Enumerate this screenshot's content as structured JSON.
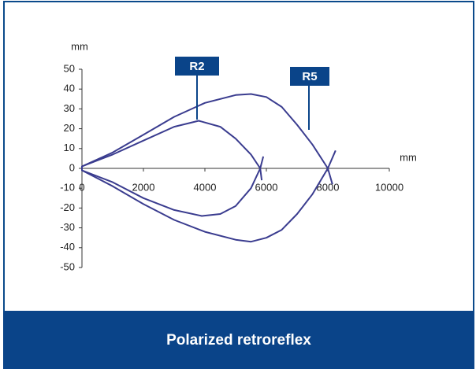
{
  "chart_data": {
    "type": "line",
    "caption": "Polarized retroreflex",
    "x_label": "mm",
    "y_label": "mm",
    "xlim": [
      0,
      10000
    ],
    "ylim": [
      -50,
      50
    ],
    "xticks": [
      0,
      2000,
      4000,
      6000,
      8000,
      10000
    ],
    "yticks": [
      -50,
      -40,
      -30,
      -20,
      -10,
      0,
      10,
      20,
      30,
      40,
      50
    ],
    "annotations": [
      {
        "text": "R2"
      },
      {
        "text": "R5"
      }
    ],
    "series": [
      {
        "name": "R2",
        "color": "#3a3c8f",
        "x": [
          5900,
          5800,
          5500,
          5000,
          4500,
          3900,
          3000,
          2000,
          1000,
          0,
          0,
          1000,
          2000,
          3000,
          3800,
          4500,
          5000,
          5500,
          5800,
          5850
        ],
        "values": [
          6,
          0,
          -10,
          -19,
          -23,
          -24,
          -21,
          -15,
          -7,
          -1,
          1,
          7,
          14,
          21,
          24,
          21,
          15,
          7,
          0,
          -6
        ]
      },
      {
        "name": "R5",
        "color": "#3a3c8f",
        "x": [
          8250,
          8000,
          7500,
          7000,
          6500,
          6000,
          5500,
          5000,
          4000,
          3000,
          2000,
          1000,
          0,
          0,
          1000,
          2000,
          3000,
          4000,
          5000,
          5500,
          6000,
          6500,
          7000,
          7500,
          8000,
          8150
        ],
        "values": [
          9,
          0,
          -13,
          -23,
          -31,
          -35,
          -37,
          -36,
          -32,
          -26,
          -18,
          -9,
          -1,
          1,
          8,
          17,
          26,
          33,
          37,
          37.5,
          36,
          31,
          22,
          12,
          0,
          -8
        ]
      }
    ]
  }
}
